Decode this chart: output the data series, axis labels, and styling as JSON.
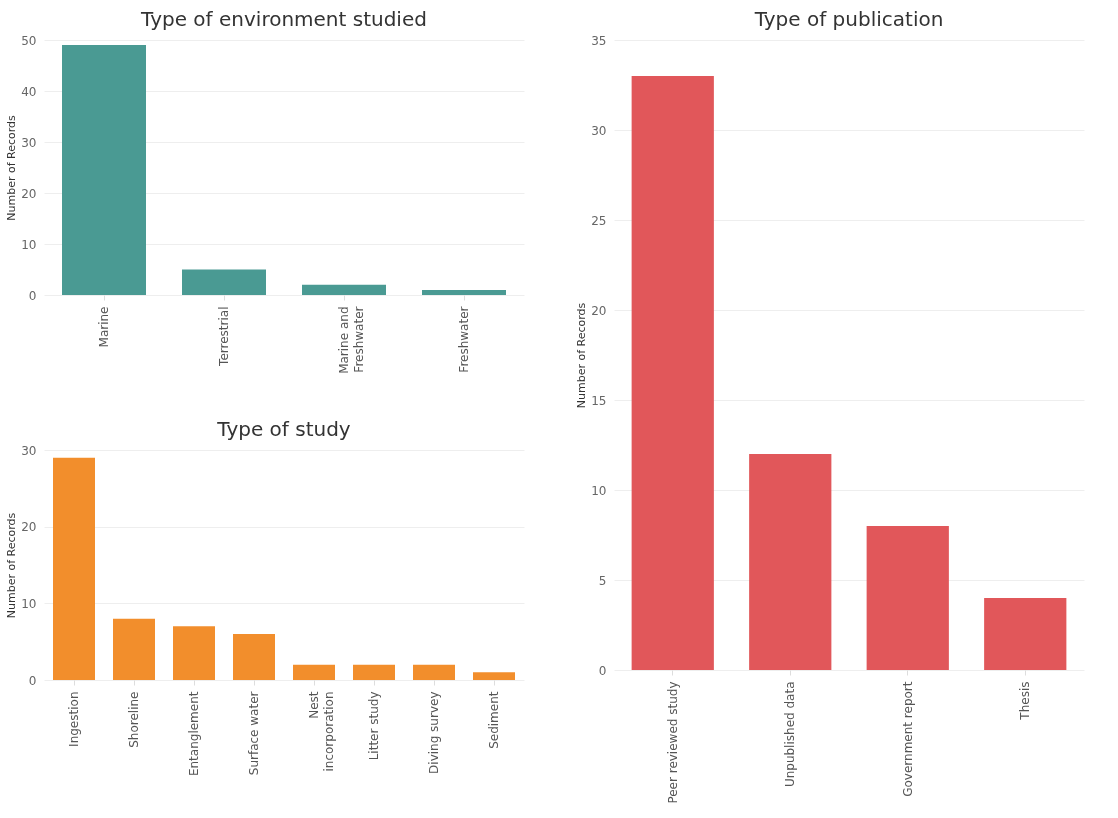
{
  "chart_data": [
    {
      "type": "bar",
      "title": "Type of environment studied",
      "ylabel": "Number of Records",
      "categories": [
        "Marine",
        "Terrestrial",
        "Marine and Freshwater",
        "Freshwater"
      ],
      "values": [
        49,
        5,
        2,
        1
      ],
      "color": "#4a9a93",
      "ylim": [
        0,
        50
      ],
      "yticks": [
        0,
        10,
        20,
        30,
        40,
        50
      ],
      "grid": "y"
    },
    {
      "type": "bar",
      "title": "Type of study",
      "ylabel": "Number of Records",
      "categories": [
        "Ingestion",
        "Shoreline",
        "Entanglement",
        "Surface water",
        "Nest incorporation",
        "Litter study",
        "Diving survey",
        "Sediment"
      ],
      "values": [
        29,
        8,
        7,
        6,
        2,
        2,
        2,
        1
      ],
      "color": "#f28e2c",
      "ylim": [
        0,
        30
      ],
      "yticks": [
        0,
        10,
        20,
        30
      ],
      "grid": "y"
    },
    {
      "type": "bar",
      "title": "Type of publication",
      "ylabel": "Number of Records",
      "categories": [
        "Peer reviewed study",
        "Unpublished data",
        "Government report",
        "Thesis"
      ],
      "values": [
        33,
        12,
        8,
        4
      ],
      "color": "#e1575a",
      "ylim": [
        0,
        35
      ],
      "yticks": [
        0,
        5,
        10,
        15,
        20,
        25,
        30,
        35
      ],
      "grid": "y"
    }
  ]
}
